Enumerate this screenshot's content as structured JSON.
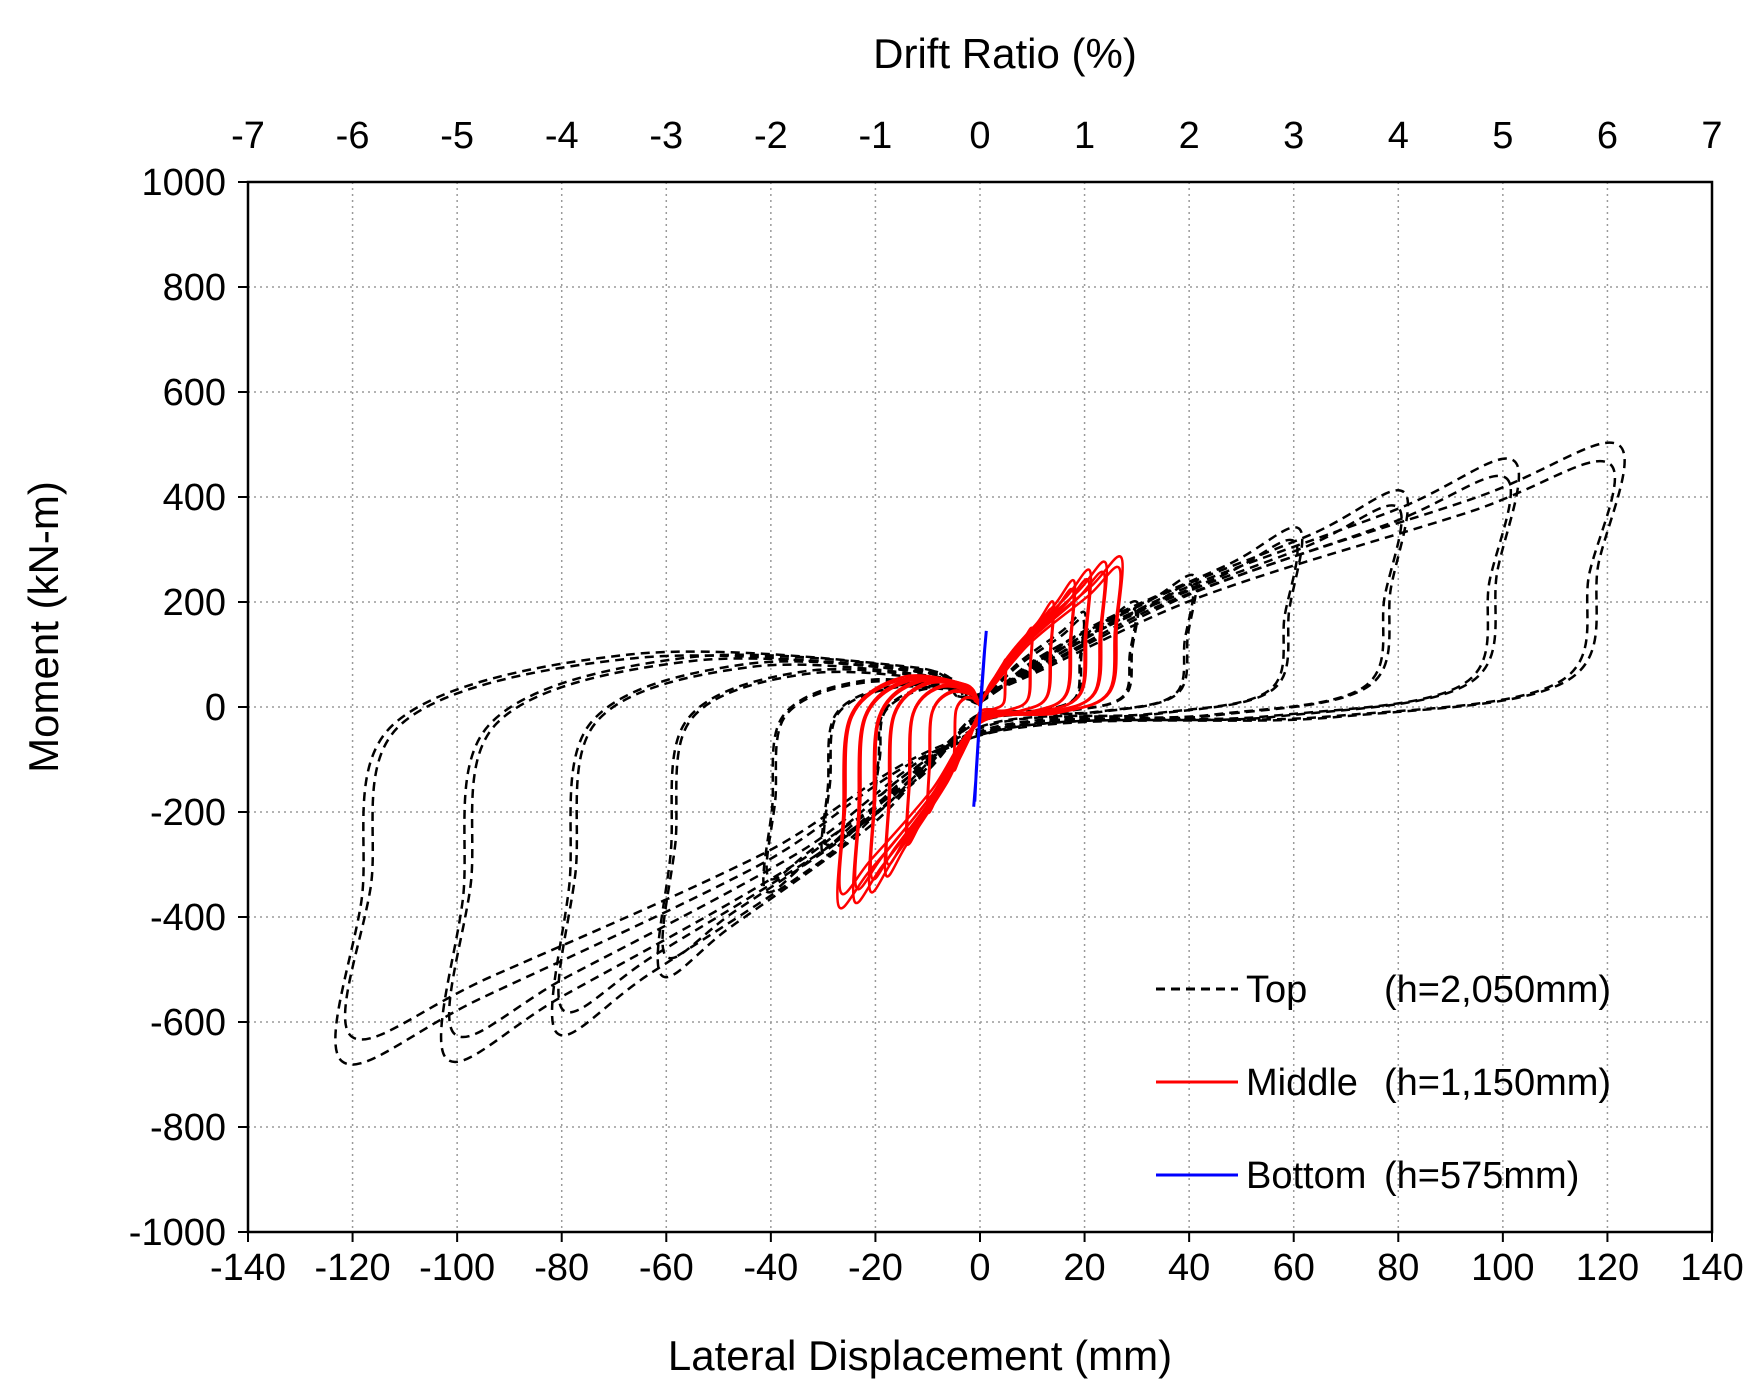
{
  "chart_data": {
    "type": "line",
    "title": "",
    "xlabel": "Lateral Displacement (mm)",
    "ylabel": "Moment (kN-m)",
    "x2label": "Drift Ratio (%)",
    "xlim": [
      -140,
      140
    ],
    "ylim": [
      -1000,
      1000
    ],
    "x2lim": [
      -7,
      7
    ],
    "grid": true,
    "legend_position": "bottom-right",
    "x_ticks": [
      -140,
      -120,
      -100,
      -80,
      -60,
      -40,
      -20,
      0,
      20,
      40,
      60,
      80,
      100,
      120,
      140
    ],
    "y_ticks": [
      -1000,
      -800,
      -600,
      -400,
      -200,
      0,
      200,
      400,
      600,
      800,
      1000
    ],
    "x2_ticks": [
      -7,
      -6,
      -5,
      -4,
      -3,
      -2,
      -1,
      0,
      1,
      2,
      3,
      4,
      5,
      6,
      7
    ],
    "series": [
      {
        "name": "Top",
        "legend_name": "Top",
        "legend_detail": "(h=2,050mm)",
        "color": "#000000",
        "dash": "dashed",
        "cycles": [
          {
            "amp": 20,
            "pos_peak": 180,
            "neg_peak": -180
          },
          {
            "amp": 30,
            "pos_peak": 200,
            "neg_peak": -280
          },
          {
            "amp": 41,
            "pos_peak": 250,
            "neg_peak": -350
          },
          {
            "amp": 61,
            "pos_peak": 340,
            "neg_peak": -510
          },
          {
            "amp": 81,
            "pos_peak": 410,
            "neg_peak": -620
          },
          {
            "amp": 102,
            "pos_peak": 470,
            "neg_peak": -670
          },
          {
            "amp": 122,
            "pos_peak": 500,
            "neg_peak": -675
          }
        ]
      },
      {
        "name": "Middle",
        "legend_name": "Middle",
        "legend_detail": "(h=1,150mm)",
        "color": "#ff0000",
        "dash": "solid",
        "cycles": [
          {
            "amp": 5,
            "pos_peak": 90,
            "neg_peak": -120
          },
          {
            "amp": 10,
            "pos_peak": 150,
            "neg_peak": -200
          },
          {
            "amp": 14,
            "pos_peak": 200,
            "neg_peak": -260
          },
          {
            "amp": 18,
            "pos_peak": 240,
            "neg_peak": -320
          },
          {
            "amp": 21,
            "pos_peak": 260,
            "neg_peak": -350
          },
          {
            "amp": 24,
            "pos_peak": 275,
            "neg_peak": -370
          },
          {
            "amp": 27,
            "pos_peak": 285,
            "neg_peak": -380
          }
        ]
      },
      {
        "name": "Bottom",
        "legend_name": "Bottom",
        "legend_detail": "(h=575mm)",
        "color": "#0000ff",
        "dash": "solid",
        "x": [
          -1.2,
          -0.8,
          -0.3,
          0.2,
          0.8,
          1.2,
          0.9,
          0.4,
          -0.2,
          -0.7,
          -1.0
        ],
        "y": [
          -190,
          -140,
          -60,
          20,
          100,
          145,
          110,
          40,
          -40,
          -120,
          -180
        ]
      }
    ]
  }
}
